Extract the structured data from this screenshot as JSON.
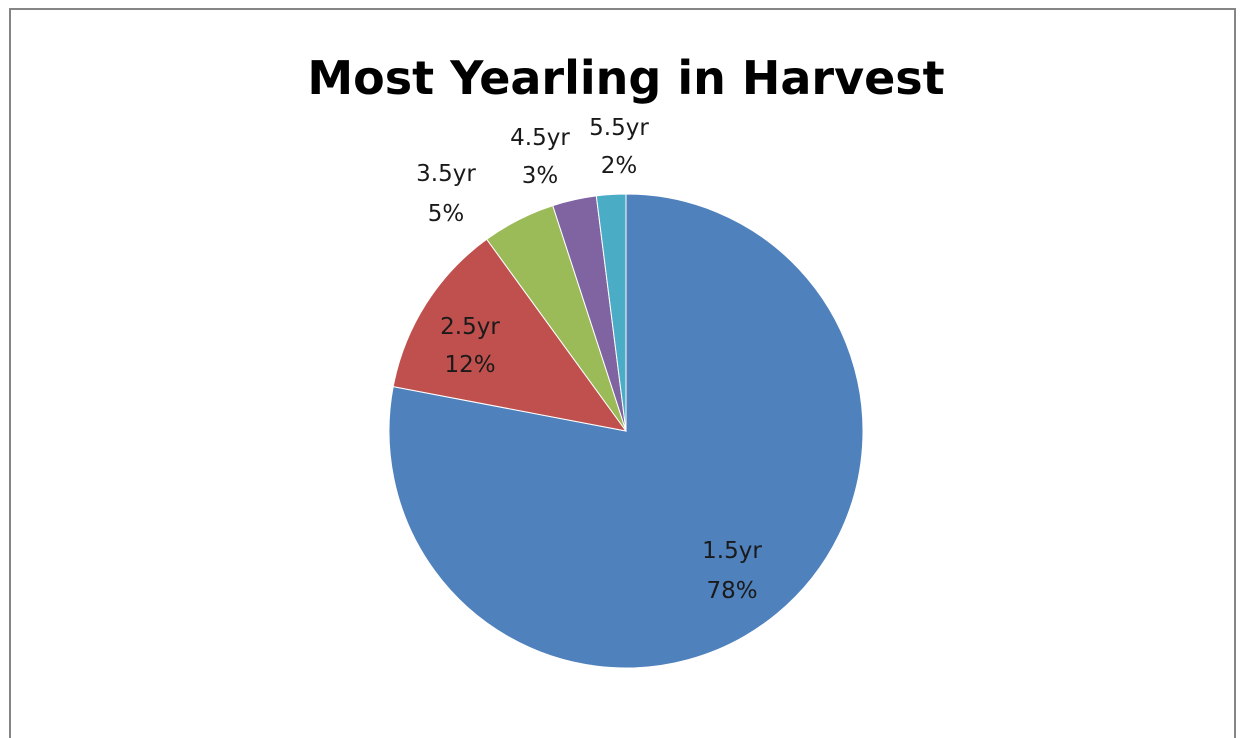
{
  "chart_data": {
    "type": "pie",
    "title": "Most Yearling in Harvest",
    "slices": [
      {
        "name": "1.5yr",
        "percent_label": "78%",
        "value": 78,
        "color": "#4F81BD"
      },
      {
        "name": "2.5yr",
        "percent_label": "12%",
        "value": 12,
        "color": "#C0504D"
      },
      {
        "name": "3.5yr",
        "percent_label": "5%",
        "value": 5,
        "color": "#9BBB59"
      },
      {
        "name": "4.5yr",
        "percent_label": "3%",
        "value": 3,
        "color": "#8064A2"
      },
      {
        "name": "5.5yr",
        "percent_label": "2%",
        "value": 2,
        "color": "#4BACC6"
      }
    ],
    "start_direction": "top",
    "order": "clockwise",
    "legend": "none"
  }
}
